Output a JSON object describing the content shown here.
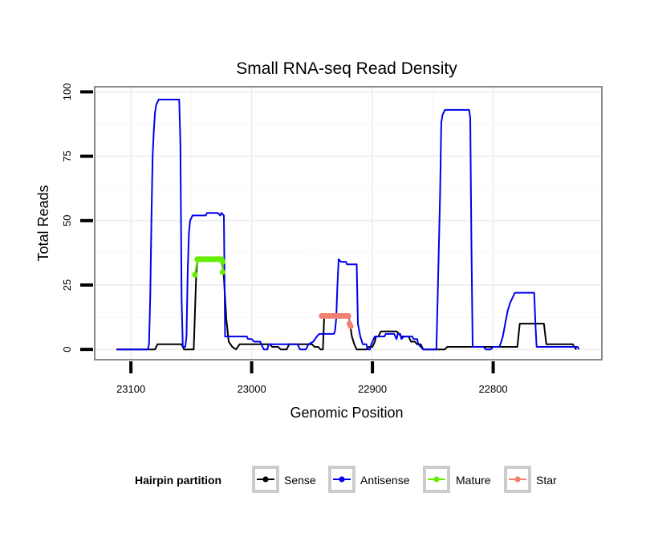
{
  "chart_data": {
    "type": "line",
    "title": "Small RNA-seq Read Density",
    "xlabel": "Genomic Position",
    "ylabel": "Total Reads",
    "xlim": [
      23130,
      22710
    ],
    "ylim": [
      -4,
      102
    ],
    "x_reversed": true,
    "x_ticks": [
      23100,
      23000,
      22900,
      22800
    ],
    "y_ticks": [
      0,
      25,
      50,
      75,
      100
    ],
    "grid": true,
    "legend": {
      "title": "Hairpin partition",
      "position": "bottom",
      "entries": [
        "Sense",
        "Antisense",
        "Mature",
        "Star"
      ]
    },
    "series": [
      {
        "name": "Sense",
        "color": "#000000",
        "style": "line",
        "points": [
          [
            23112,
            0
          ],
          [
            23080,
            0
          ],
          [
            23078,
            2
          ],
          [
            23058,
            2
          ],
          [
            23056,
            0
          ],
          [
            23048,
            0
          ],
          [
            23046,
            28
          ],
          [
            23045,
            35
          ],
          [
            23025,
            35
          ],
          [
            23023,
            28
          ],
          [
            23021,
            12
          ],
          [
            23019,
            3
          ],
          [
            23016,
            1
          ],
          [
            23013,
            0
          ],
          [
            23010,
            2
          ],
          [
            22985,
            2
          ],
          [
            22983,
            1
          ],
          [
            22978,
            1
          ],
          [
            22976,
            0
          ],
          [
            22971,
            0
          ],
          [
            22969,
            2
          ],
          [
            22950,
            2
          ],
          [
            22948,
            1
          ],
          [
            22945,
            1
          ],
          [
            22943,
            0
          ],
          [
            22941,
            0
          ],
          [
            22940,
            12
          ],
          [
            22939,
            13
          ],
          [
            22920,
            13
          ],
          [
            22919,
            11
          ],
          [
            22917,
            5
          ],
          [
            22915,
            2
          ],
          [
            22913,
            0
          ],
          [
            22905,
            0
          ],
          [
            22903,
            1
          ],
          [
            22900,
            1
          ],
          [
            22898,
            3
          ],
          [
            22897,
            5
          ],
          [
            22895,
            5
          ],
          [
            22893,
            7
          ],
          [
            22880,
            7
          ],
          [
            22878,
            6
          ],
          [
            22876,
            5
          ],
          [
            22870,
            5
          ],
          [
            22868,
            3
          ],
          [
            22865,
            3
          ],
          [
            22863,
            2
          ],
          [
            22860,
            2
          ],
          [
            22858,
            0
          ],
          [
            22840,
            0
          ],
          [
            22838,
            1
          ],
          [
            22780,
            1
          ],
          [
            22778,
            10
          ],
          [
            22758,
            10
          ],
          [
            22756,
            2
          ],
          [
            22734,
            2
          ],
          [
            22733,
            1
          ],
          [
            22731,
            0
          ]
        ]
      },
      {
        "name": "Antisense",
        "color": "#0000ee",
        "style": "line",
        "points": [
          [
            23112,
            0
          ],
          [
            23086,
            0
          ],
          [
            23085,
            2
          ],
          [
            23084,
            20
          ],
          [
            23083,
            50
          ],
          [
            23082,
            75
          ],
          [
            23081,
            85
          ],
          [
            23080,
            92
          ],
          [
            23079,
            95
          ],
          [
            23078,
            96
          ],
          [
            23077,
            97
          ],
          [
            23060,
            97
          ],
          [
            23059,
            80
          ],
          [
            23058,
            20
          ],
          [
            23057,
            1
          ],
          [
            23055,
            1
          ],
          [
            23054,
            5
          ],
          [
            23053,
            30
          ],
          [
            23052,
            45
          ],
          [
            23051,
            50
          ],
          [
            23049,
            52
          ],
          [
            23038,
            52
          ],
          [
            23037,
            53
          ],
          [
            23028,
            53
          ],
          [
            23026,
            52
          ],
          [
            23025,
            53
          ],
          [
            23023,
            52
          ],
          [
            23022,
            5
          ],
          [
            23004,
            5
          ],
          [
            23003,
            4
          ],
          [
            23000,
            4
          ],
          [
            22998,
            3
          ],
          [
            22993,
            3
          ],
          [
            22991,
            1
          ],
          [
            22990,
            0
          ],
          [
            22987,
            0
          ],
          [
            22986,
            2
          ],
          [
            22962,
            2
          ],
          [
            22961,
            1
          ],
          [
            22960,
            0
          ],
          [
            22955,
            0
          ],
          [
            22953,
            2
          ],
          [
            22949,
            3
          ],
          [
            22946,
            5
          ],
          [
            22944,
            6
          ],
          [
            22932,
            6
          ],
          [
            22931,
            7
          ],
          [
            22930,
            12
          ],
          [
            22929,
            25
          ],
          [
            22928,
            35
          ],
          [
            22926,
            34
          ],
          [
            22922,
            34
          ],
          [
            22921,
            33
          ],
          [
            22913,
            33
          ],
          [
            22912,
            10
          ],
          [
            22910,
            5
          ],
          [
            22908,
            2
          ],
          [
            22905,
            2
          ],
          [
            22904,
            0
          ],
          [
            22902,
            0
          ],
          [
            22901,
            2
          ],
          [
            22899,
            4
          ],
          [
            22898,
            5
          ],
          [
            22890,
            5
          ],
          [
            22889,
            6
          ],
          [
            22882,
            6
          ],
          [
            22880,
            4
          ],
          [
            22879,
            6
          ],
          [
            22877,
            6
          ],
          [
            22876,
            4
          ],
          [
            22874,
            5
          ],
          [
            22867,
            5
          ],
          [
            22866,
            4
          ],
          [
            22863,
            4
          ],
          [
            22862,
            2
          ],
          [
            22860,
            1
          ],
          [
            22858,
            0
          ],
          [
            22847,
            0
          ],
          [
            22846,
            20
          ],
          [
            22845,
            40
          ],
          [
            22844,
            60
          ],
          [
            22843,
            88
          ],
          [
            22842,
            91
          ],
          [
            22841,
            92
          ],
          [
            22840,
            93
          ],
          [
            22820,
            93
          ],
          [
            22819,
            90
          ],
          [
            22818,
            40
          ],
          [
            22817,
            1
          ],
          [
            22808,
            1
          ],
          [
            22806,
            0
          ],
          [
            22802,
            0
          ],
          [
            22800,
            1
          ],
          [
            22795,
            1
          ],
          [
            22794,
            2
          ],
          [
            22792,
            5
          ],
          [
            22790,
            10
          ],
          [
            22788,
            15
          ],
          [
            22786,
            18
          ],
          [
            22784,
            20
          ],
          [
            22782,
            22
          ],
          [
            22766,
            22
          ],
          [
            22765,
            10
          ],
          [
            22764,
            1
          ],
          [
            22730,
            1
          ],
          [
            22729,
            0
          ]
        ]
      },
      {
        "name": "Mature",
        "color": "#66ee00",
        "style": "markers",
        "points": [
          [
            23047,
            29
          ],
          [
            23045,
            35
          ],
          [
            23043,
            35
          ],
          [
            23041,
            35
          ],
          [
            23039,
            35
          ],
          [
            23037,
            35
          ],
          [
            23035,
            35
          ],
          [
            23033,
            35
          ],
          [
            23031,
            35
          ],
          [
            23029,
            35
          ],
          [
            23027,
            35
          ],
          [
            23025,
            35
          ],
          [
            23024,
            34
          ],
          [
            23024,
            30
          ]
        ]
      },
      {
        "name": "Star",
        "color": "#f08070",
        "style": "markers",
        "points": [
          [
            22942,
            13
          ],
          [
            22940,
            13
          ],
          [
            22938,
            13
          ],
          [
            22936,
            13
          ],
          [
            22934,
            13
          ],
          [
            22932,
            13
          ],
          [
            22930,
            13
          ],
          [
            22928,
            13
          ],
          [
            22926,
            13
          ],
          [
            22924,
            13
          ],
          [
            22922,
            13
          ],
          [
            22920,
            13
          ],
          [
            22919,
            10
          ],
          [
            22918,
            9
          ]
        ]
      }
    ]
  }
}
